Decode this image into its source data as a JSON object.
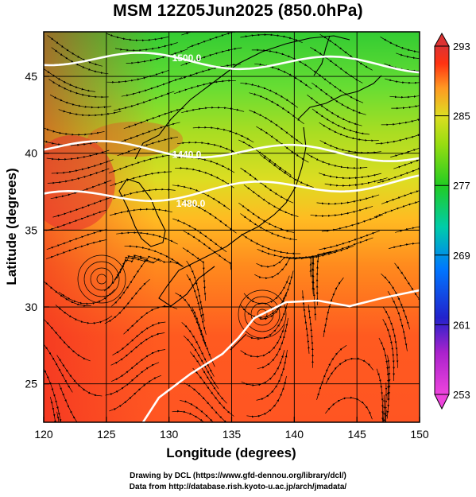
{
  "title": "MSM 12Z05Jun2025 (850.0hPa)",
  "x_axis": {
    "label": "Longitude (degrees)",
    "min": 120,
    "max": 150,
    "ticks": [
      "120",
      "125",
      "130",
      "135",
      "140",
      "145",
      "150"
    ]
  },
  "y_axis": {
    "label": "Latitude  (degrees)",
    "min": 22.5,
    "max": 47.9,
    "ticks": [
      "25",
      "30",
      "35",
      "40",
      "45"
    ]
  },
  "colorbar": {
    "min": 253,
    "max": 293,
    "labels": [
      "293",
      "285",
      "277",
      "269",
      "261",
      "253"
    ],
    "colors": [
      "#cc33cc",
      "#2222cc",
      "#00aaff",
      "#00ccaa",
      "#22cc22",
      "#99dd11",
      "#dddd22",
      "#ff9922",
      "#ff3311",
      "#dd3333"
    ]
  },
  "contours": [
    {
      "label": "1500.0",
      "lat": 46.2
    },
    {
      "label": "1440.0",
      "lat": 40.4
    },
    {
      "label": "1480.0",
      "lat": 37.0
    }
  ],
  "credits": {
    "line1": "Drawing by DCL (https://www.gfd-dennou.org/library/dcl/)",
    "line2": "Data from http://database.rish.kyoto-u.ac.jp/arch/jmadata/"
  }
}
